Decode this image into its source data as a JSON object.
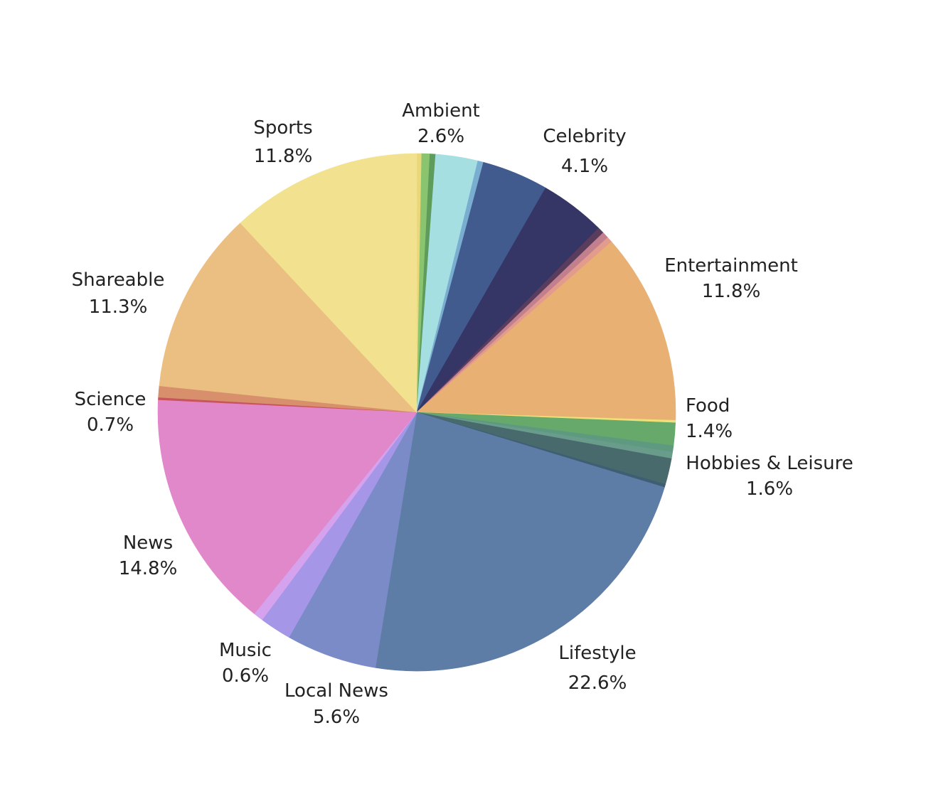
{
  "chart_data": {
    "type": "pie",
    "title": "",
    "start_angle_deg": 90,
    "direction": "clockwise",
    "slices": [
      {
        "label": "",
        "value": 0.3,
        "color": "#e9d77a"
      },
      {
        "label": "",
        "value": 0.5,
        "color": "#8bc46e"
      },
      {
        "label": "",
        "value": 0.35,
        "color": "#5e9c5c"
      },
      {
        "label": "Ambient",
        "value": 2.6,
        "color": "#a6dfe2"
      },
      {
        "label": "",
        "value": 0.35,
        "color": "#79aed0"
      },
      {
        "label": "Celebrity",
        "value": 4.1,
        "color": "#425b8e"
      },
      {
        "label": "",
        "value": 4.05,
        "color": "#353566"
      },
      {
        "label": "",
        "value": 0.4,
        "color": "#5a3c5c"
      },
      {
        "label": "",
        "value": 0.4,
        "color": "#c27f8e"
      },
      {
        "label": "",
        "value": 0.35,
        "color": "#e39c8c"
      },
      {
        "label": "Entertainment",
        "value": 11.8,
        "color": "#e8b173"
      },
      {
        "label": "",
        "value": 0.15,
        "color": "#f0e078"
      },
      {
        "label": "Food",
        "value": 1.4,
        "color": "#67a96b"
      },
      {
        "label": "",
        "value": 0.4,
        "color": "#5e9a80"
      },
      {
        "label": "",
        "value": 0.4,
        "color": "#6a9c8c"
      },
      {
        "label": "Hobbies & Leisure",
        "value": 1.6,
        "color": "#496a6c"
      },
      {
        "label": "",
        "value": 0.2,
        "color": "#3e5f73"
      },
      {
        "label": "Lifestyle",
        "value": 22.6,
        "color": "#5d7da6"
      },
      {
        "label": "Local News",
        "value": 5.6,
        "color": "#7b8bc8"
      },
      {
        "label": "",
        "value": 1.95,
        "color": "#a596e8"
      },
      {
        "label": "Music",
        "value": 0.6,
        "color": "#d5a2ee"
      },
      {
        "label": "News",
        "value": 14.8,
        "color": "#e188cb"
      },
      {
        "label": "",
        "value": 0.15,
        "color": "#c9555c"
      },
      {
        "label": "Science",
        "value": 0.7,
        "color": "#d88f6b"
      },
      {
        "label": "Shareable",
        "value": 11.3,
        "color": "#ebbe82"
      },
      {
        "label": "Sports",
        "value": 11.8,
        "color": "#f2e18e"
      }
    ],
    "labels": [
      {
        "name": "Sports",
        "pct": "11.8%"
      },
      {
        "name": "Ambient",
        "pct": "2.6%"
      },
      {
        "name": "Celebrity",
        "pct": "4.1%"
      },
      {
        "name": "Entertainment",
        "pct": "11.8%"
      },
      {
        "name": "Shareable",
        "pct": "11.3%"
      },
      {
        "name": "Science",
        "pct": "0.7%"
      },
      {
        "name": "Food",
        "pct": "1.4%"
      },
      {
        "name": "Hobbies & Leisure",
        "pct": "1.6%"
      },
      {
        "name": "News",
        "pct": "14.8%"
      },
      {
        "name": "Music",
        "pct": "0.6%"
      },
      {
        "name": "Local News",
        "pct": "5.6%"
      },
      {
        "name": "Lifestyle",
        "pct": "22.6%"
      }
    ]
  }
}
